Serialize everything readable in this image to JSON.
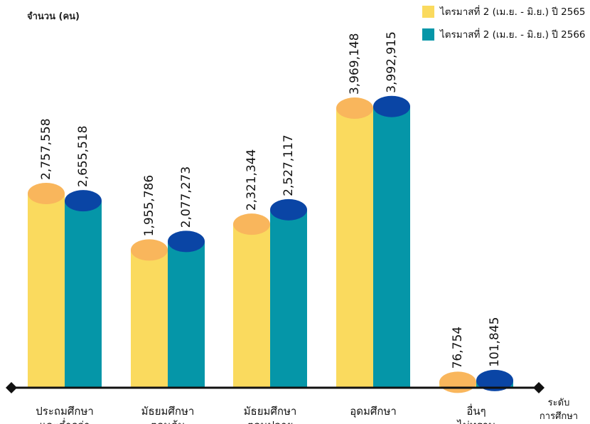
{
  "chart_data": {
    "type": "bar",
    "ylabel": "จำนวน (คน)",
    "xlabel": "ระดับ การศึกษา",
    "categories": [
      [
        "ประถมศึกษา",
        "และต่ำกว่า"
      ],
      [
        "มัธยมศึกษา",
        "ตอนต้น"
      ],
      [
        "มัธยมศึกษา",
        "ตอนปลาย"
      ],
      [
        "อุดมศึกษา"
      ],
      [
        "อื่นๆ",
        "ไม่ทราบ"
      ]
    ],
    "series": [
      {
        "name": "ไตรมาสที่ 2 (เม.ย. - มิ.ย.) ปี 2565",
        "values": [
          2757558,
          1955786,
          2321344,
          3969148,
          76754
        ],
        "labels": [
          "2,757,558",
          "1,955,786",
          "2,321,344",
          "3,969,148",
          "76,754"
        ],
        "color": "#FADA5E",
        "cap_color": "#F9B65C"
      },
      {
        "name": "ไตรมาสที่ 2 (เม.ย. - มิ.ย.) ปี 2566",
        "values": [
          2655518,
          2077273,
          2527117,
          3992915,
          101845
        ],
        "labels": [
          "2,655,518",
          "2,077,273",
          "2,527,117",
          "3,992,915",
          "101,845"
        ],
        "color": "#0596A8",
        "cap_color": "#0A45A5"
      }
    ],
    "legend_position": "top-right",
    "grid": false
  }
}
